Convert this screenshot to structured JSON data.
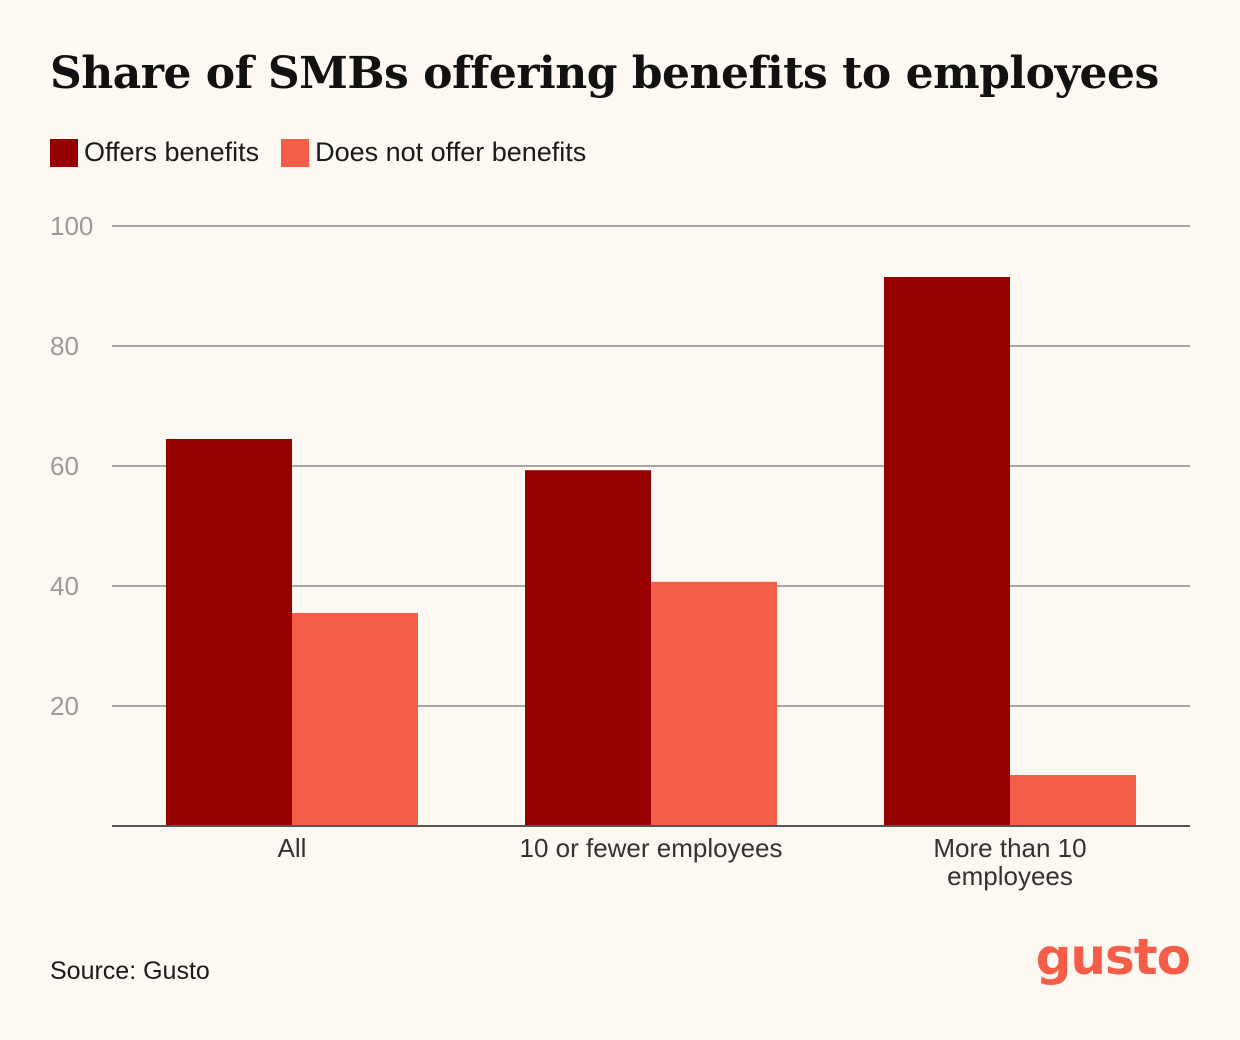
{
  "title": "Share of SMBs offering benefits to employees",
  "source": "Source: Gusto",
  "logo_text": "gusto",
  "colors": {
    "background": "#FDF8F1",
    "offers": "#960000",
    "not_offers": "#F45D48",
    "grid": "#8A8A8A",
    "tick": "#9A9A9A",
    "brand": "#F45D48"
  },
  "chart_data": {
    "type": "bar",
    "title": "Share of SMBs offering benefits to employees",
    "xlabel": "",
    "ylabel": "",
    "categories": [
      [
        "All"
      ],
      [
        "10 or fewer employees"
      ],
      [
        "More than 10",
        "employees"
      ]
    ],
    "series": [
      {
        "name": "Offers benefits",
        "values": [
          64.5,
          59.3,
          91.5
        ]
      },
      {
        "name": "Does not offer benefits",
        "values": [
          35.5,
          40.7,
          8.5
        ]
      }
    ],
    "ylim": [
      0,
      100
    ],
    "yticks": [
      20,
      40,
      60,
      80,
      100
    ],
    "grid": true,
    "legend_position": "top-left"
  }
}
